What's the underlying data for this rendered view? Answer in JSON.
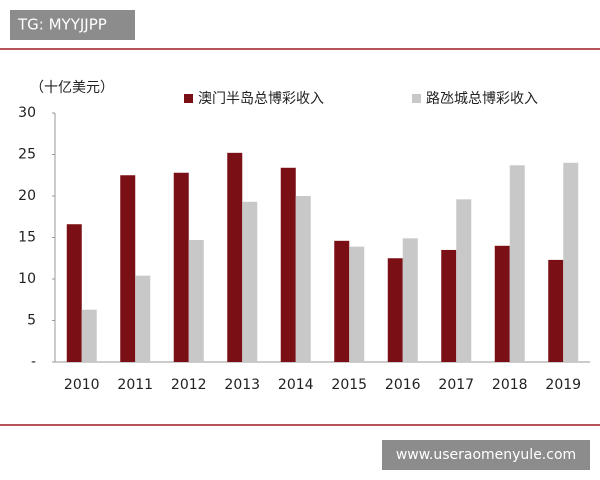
{
  "chart_data": {
    "type": "bar",
    "unit_label": "（十亿美元）",
    "categories": [
      "2010",
      "2011",
      "2012",
      "2013",
      "2014",
      "2015",
      "2016",
      "2017",
      "2018",
      "2019"
    ],
    "series": [
      {
        "name": "澳门半岛总博彩收入",
        "color": "#7b0f16",
        "values": [
          16.6,
          22.5,
          22.8,
          25.2,
          23.4,
          14.6,
          12.5,
          13.5,
          14.0,
          12.3
        ]
      },
      {
        "name": "路氹城总博彩收入",
        "color": "#c8c8c8",
        "values": [
          6.3,
          10.4,
          14.7,
          19.3,
          20.0,
          13.9,
          14.9,
          19.6,
          23.7,
          24.0
        ]
      }
    ],
    "ylim": [
      0,
      30
    ],
    "yticks": [
      {
        "value": 0,
        "label": "-"
      },
      5,
      10,
      15,
      20,
      25,
      30
    ],
    "grid": false,
    "legend": "top"
  },
  "overlay": {
    "top_tag": "TG: MYYJJPP",
    "bottom_tag": "www.useraomenyule.com"
  }
}
